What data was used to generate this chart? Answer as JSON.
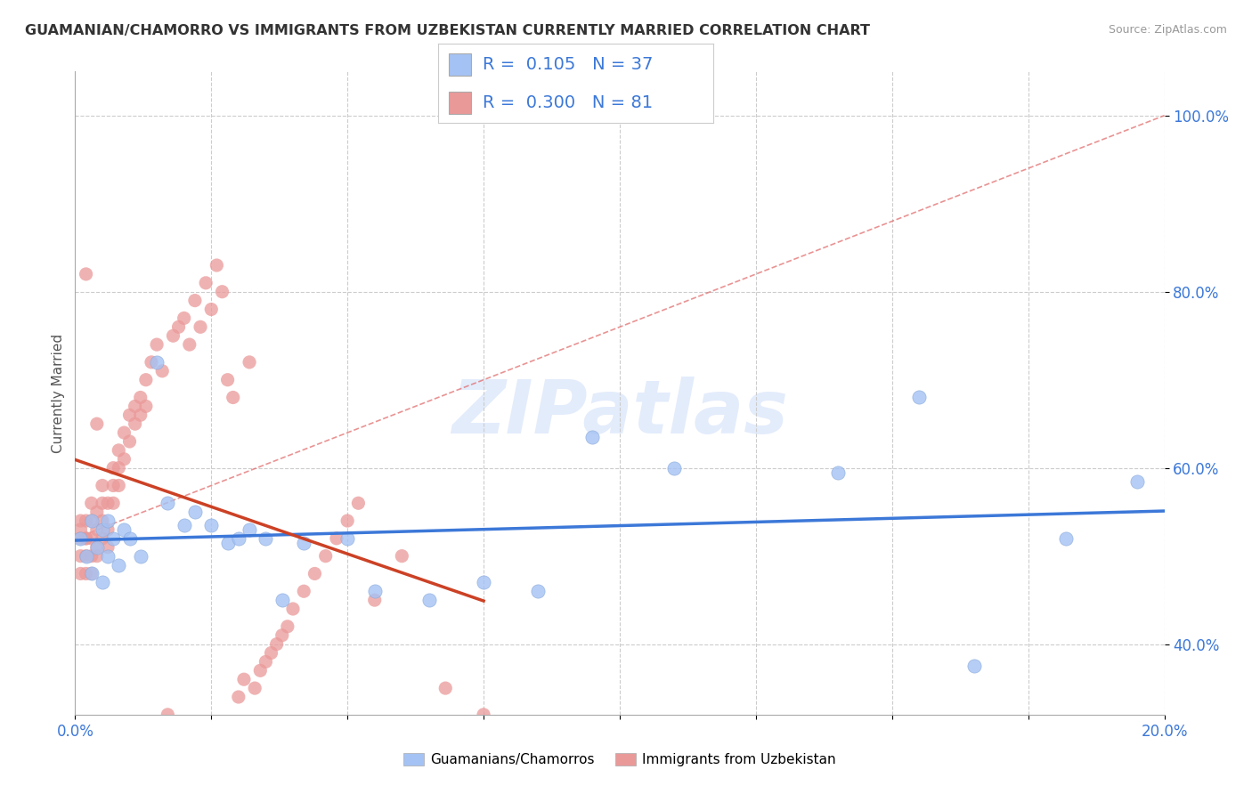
{
  "title": "GUAMANIAN/CHAMORRO VS IMMIGRANTS FROM UZBEKISTAN CURRENTLY MARRIED CORRELATION CHART",
  "source": "Source: ZipAtlas.com",
  "ylabel": "Currently Married",
  "xlim": [
    0.0,
    0.2
  ],
  "ylim": [
    0.32,
    1.05
  ],
  "y_tick_values": [
    0.4,
    0.6,
    0.8,
    1.0
  ],
  "y_tick_labels": [
    "40.0%",
    "60.0%",
    "80.0%",
    "100.0%"
  ],
  "color_blue": "#A4C2F4",
  "color_pink": "#EA9999",
  "color_blue_line": "#3C78D8",
  "color_pink_line": "#CC4125",
  "color_ref_line": "#E06666",
  "watermark": "ZIPatlas",
  "legend_label1": "Guamanians/Chamorros",
  "legend_label2": "Immigrants from Uzbekistan",
  "blue_R": "0.105",
  "blue_N": "37",
  "pink_R": "0.300",
  "pink_N": "81"
}
